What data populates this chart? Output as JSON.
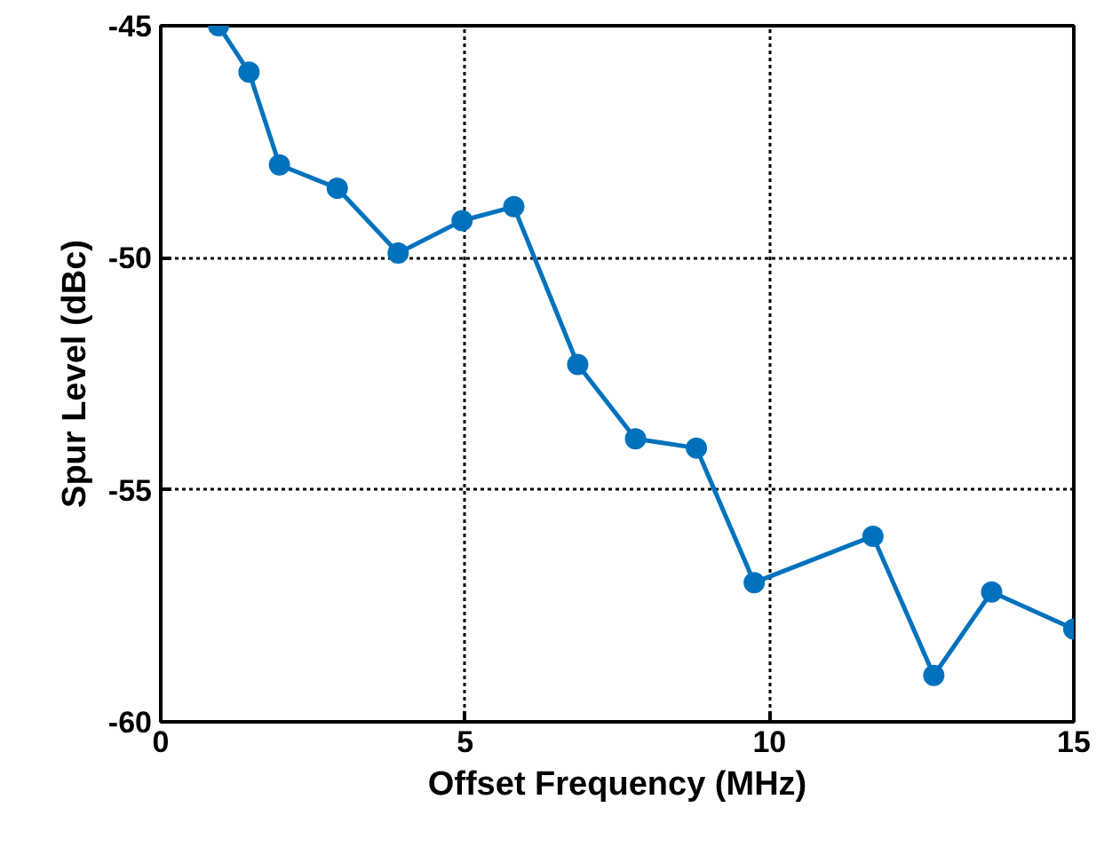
{
  "chart_data": {
    "type": "line",
    "xlabel": "Offset Frequency (MHz)",
    "ylabel": "Spur Level (dBc)",
    "x": [
      0.95,
      1.45,
      1.95,
      2.9,
      3.9,
      4.95,
      5.8,
      6.85,
      7.8,
      8.8,
      9.75,
      11.7,
      12.7,
      13.65,
      15
    ],
    "series": [
      {
        "color": "#0072bd",
        "values": [
          -45,
          -46,
          -48,
          -48.5,
          -49.9,
          -49.2,
          -48.9,
          -52.3,
          -53.9,
          -54.1,
          -57,
          -56,
          -59,
          -57.2,
          -58
        ]
      }
    ],
    "xlim": [
      0,
      15
    ],
    "ylim": [
      -60,
      -45
    ],
    "xticks": [
      0,
      5,
      10,
      15
    ],
    "yticks": [
      -60,
      -55,
      -50,
      -45
    ],
    "grid": true,
    "marker": "circle",
    "line_style": "solid"
  }
}
